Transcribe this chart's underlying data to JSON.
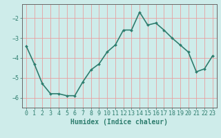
{
  "x": [
    0,
    1,
    2,
    3,
    4,
    5,
    6,
    7,
    8,
    9,
    10,
    11,
    12,
    13,
    14,
    15,
    16,
    17,
    18,
    19,
    20,
    21,
    22,
    23
  ],
  "y": [
    -3.4,
    -4.3,
    -5.3,
    -5.8,
    -5.8,
    -5.9,
    -5.9,
    -5.2,
    -4.6,
    -4.3,
    -3.7,
    -3.35,
    -2.6,
    -2.6,
    -1.7,
    -2.35,
    -2.25,
    -2.6,
    -3.0,
    -3.35,
    -3.7,
    -4.7,
    -4.55,
    -3.9
  ],
  "line_color": "#2e7d6e",
  "marker": "D",
  "marker_size": 2,
  "bg_color": "#ceecea",
  "grid_color": "#e8a0a0",
  "xlabel": "Humidex (Indice chaleur)",
  "xlabel_fontsize": 7,
  "tick_fontsize": 6,
  "ylim": [
    -6.5,
    -1.3
  ],
  "xlim": [
    -0.5,
    23.5
  ],
  "yticks": [
    -6,
    -5,
    -4,
    -3,
    -2
  ],
  "xticks": [
    0,
    1,
    2,
    3,
    4,
    5,
    6,
    7,
    8,
    9,
    10,
    11,
    12,
    13,
    14,
    15,
    16,
    17,
    18,
    19,
    20,
    21,
    22,
    23
  ],
  "spine_color": "#666666",
  "line_width": 1.2
}
